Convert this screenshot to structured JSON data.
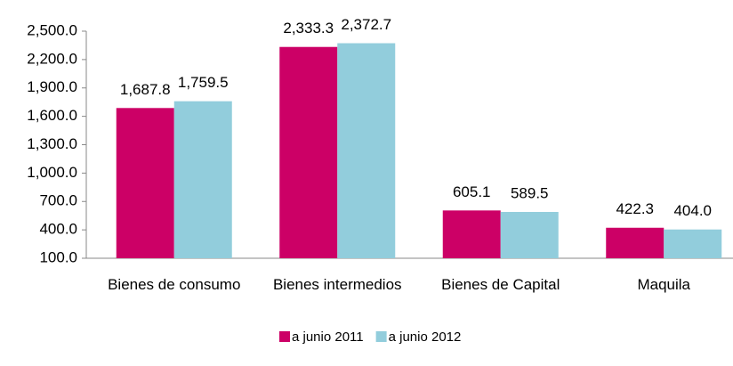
{
  "chart_data": {
    "type": "bar",
    "categories": [
      "Bienes de consumo",
      "Bienes intermedios",
      "Bienes de Capital",
      "Maquila"
    ],
    "series": [
      {
        "name": "a junio 2011",
        "color": "#cc0066",
        "values": [
          1687.8,
          2333.3,
          605.1,
          422.3
        ],
        "value_labels": [
          "1,687.8",
          "2,333.3",
          "605.1",
          "422.3"
        ]
      },
      {
        "name": "a junio 2012",
        "color": "#92cddc",
        "values": [
          1759.5,
          2372.7,
          589.5,
          404.0
        ],
        "value_labels": [
          "1,759.5",
          "2,372.7",
          "589.5",
          "404.0"
        ]
      }
    ],
    "ylim": [
      100,
      2500
    ],
    "yticks": [
      {
        "value": 100,
        "label": "100.0"
      },
      {
        "value": 400,
        "label": "400.0"
      },
      {
        "value": 700,
        "label": "700.0"
      },
      {
        "value": 1000,
        "label": "1,000.0"
      },
      {
        "value": 1300,
        "label": "1,300.0"
      },
      {
        "value": 1600,
        "label": "1,600.0"
      },
      {
        "value": 1900,
        "label": "1,900.0"
      },
      {
        "value": 2200,
        "label": "2,200.0"
      },
      {
        "value": 2500,
        "label": "2,500.0"
      }
    ],
    "grid": false,
    "legend": "bottom"
  }
}
